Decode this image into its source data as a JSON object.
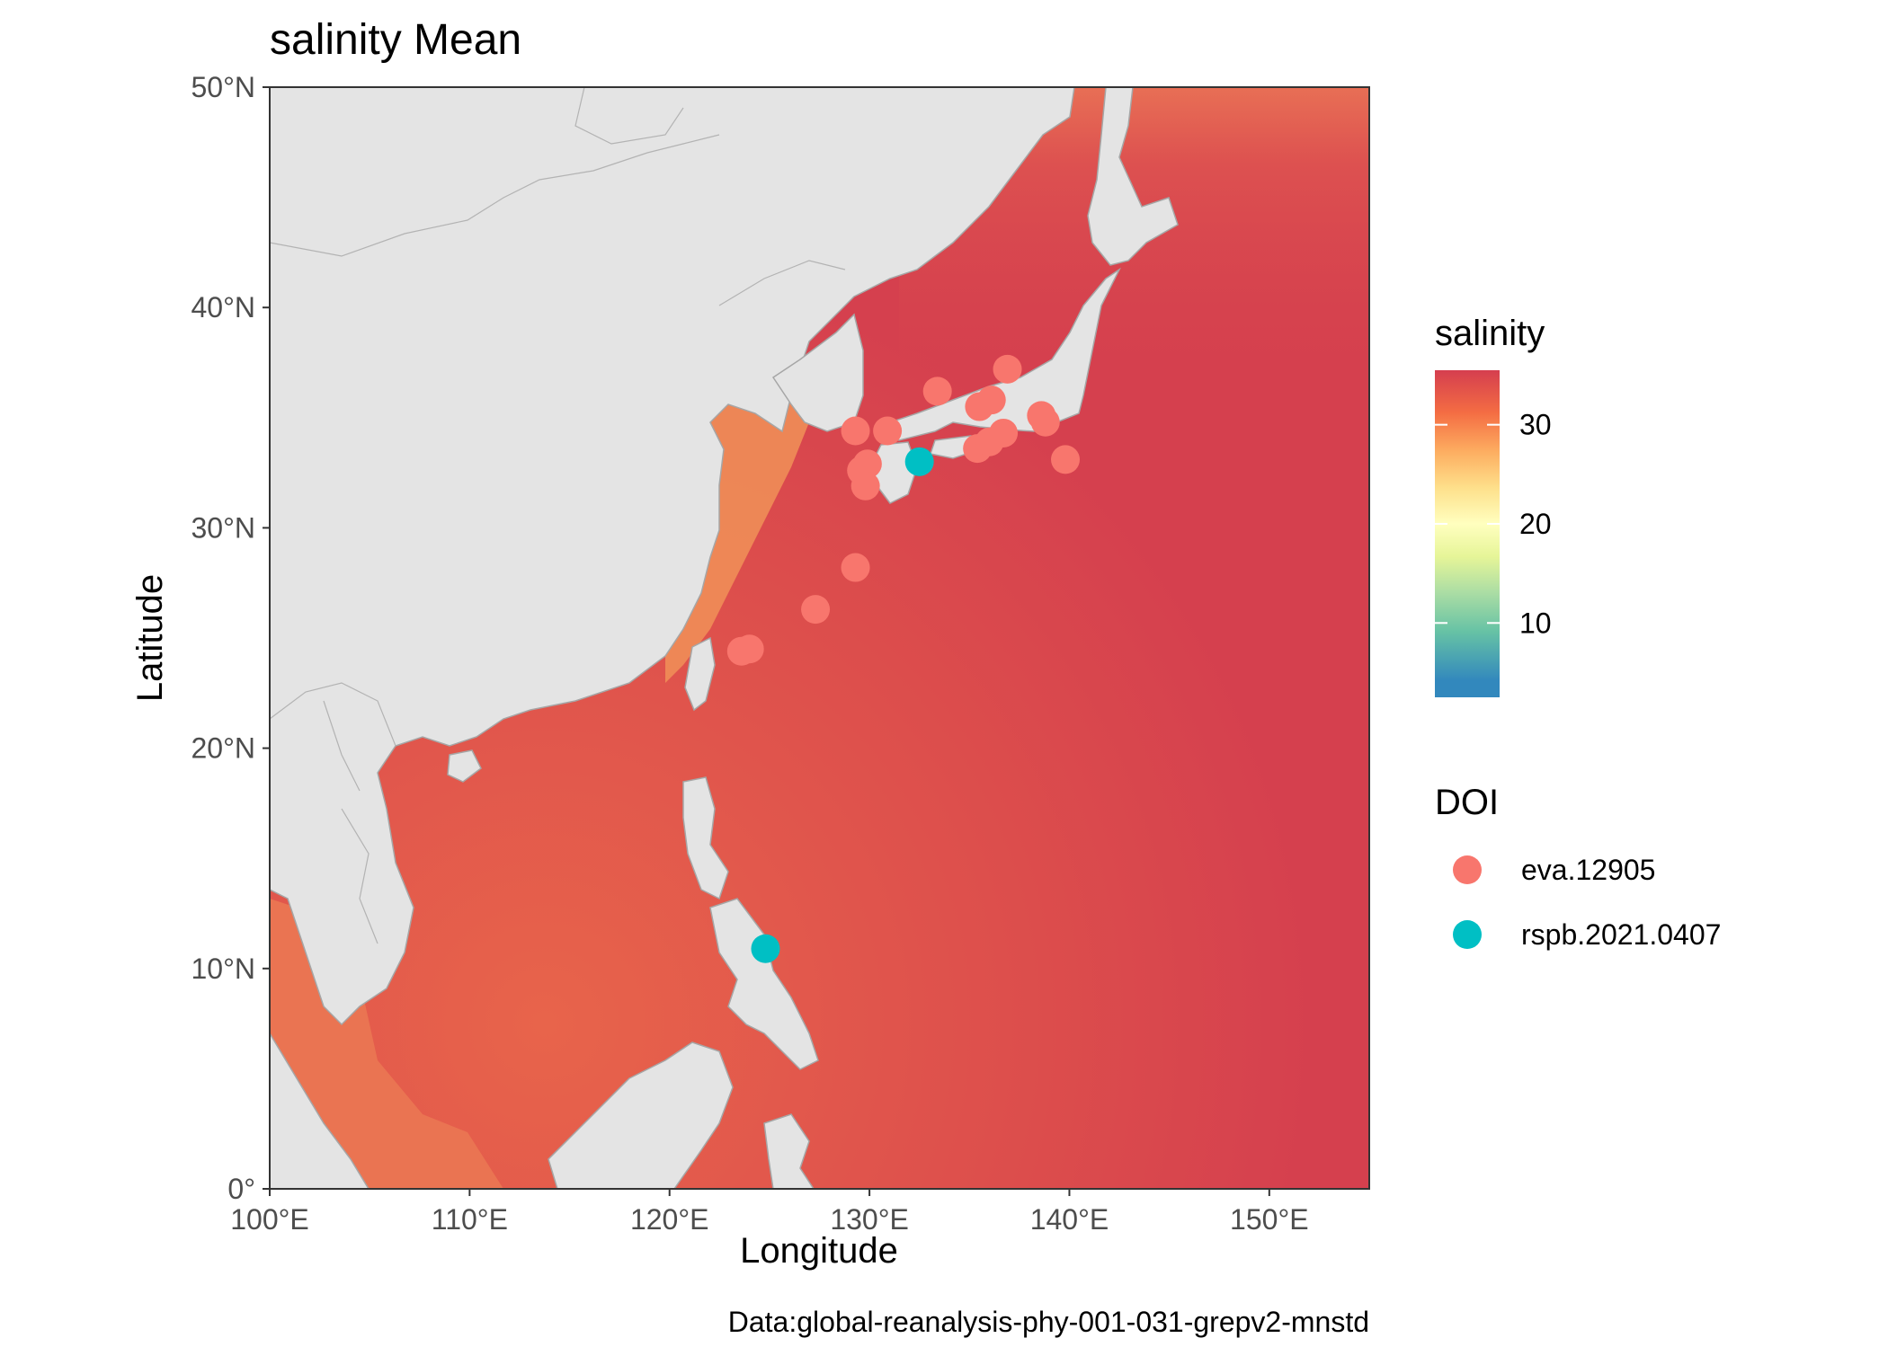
{
  "title": "salinity Mean",
  "xlabel": "Longitude",
  "ylabel": "Latitude",
  "caption": "Data:global-reanalysis-phy-001-031-grepv2-mnstd",
  "x_ticks": [
    "100°E",
    "110°E",
    "120°E",
    "130°E",
    "140°E",
    "150°E"
  ],
  "y_ticks": [
    "0°",
    "10°N",
    "20°N",
    "30°N",
    "40°N",
    "50°N"
  ],
  "colorbar": {
    "title": "salinity",
    "ticks": [
      "10",
      "20",
      "30"
    ],
    "tick_values": [
      10,
      20,
      30
    ],
    "min": 2.5,
    "max": 35.5,
    "palette": [
      "#3288bd",
      "#66c2a5",
      "#abdda4",
      "#e6f598",
      "#ffffbf",
      "#fee08b",
      "#fdae61",
      "#f46d43",
      "#d53e4f"
    ]
  },
  "colors": {
    "land": "#e4e4e4",
    "land_border": "#a6a6a6",
    "panel_border": "#333333",
    "ocean_main": "#d5404e",
    "ocean_shelf": "#e0574a"
  },
  "legend": {
    "title": "DOI",
    "items": [
      {
        "label": "eva.12905",
        "color": "#f8766d"
      },
      {
        "label": "rspb.2021.0407",
        "color": "#00bfc4"
      }
    ]
  },
  "chart_data": {
    "type": "map-scatter",
    "xlim": [
      100,
      155
    ],
    "ylim": [
      0,
      50
    ],
    "series": [
      {
        "name": "eva.12905",
        "points": [
          {
            "lon": 133.4,
            "lat": 36.2
          },
          {
            "lon": 136.9,
            "lat": 37.2
          },
          {
            "lon": 135.5,
            "lat": 35.5
          },
          {
            "lon": 136.1,
            "lat": 35.8
          },
          {
            "lon": 138.6,
            "lat": 35.1
          },
          {
            "lon": 138.8,
            "lat": 34.8
          },
          {
            "lon": 129.3,
            "lat": 34.4
          },
          {
            "lon": 130.9,
            "lat": 34.4
          },
          {
            "lon": 135.4,
            "lat": 33.6
          },
          {
            "lon": 136.0,
            "lat": 33.9
          },
          {
            "lon": 136.7,
            "lat": 34.3
          },
          {
            "lon": 139.8,
            "lat": 33.1
          },
          {
            "lon": 129.9,
            "lat": 32.9
          },
          {
            "lon": 129.6,
            "lat": 32.6
          },
          {
            "lon": 129.8,
            "lat": 31.9
          },
          {
            "lon": 129.3,
            "lat": 28.2
          },
          {
            "lon": 127.3,
            "lat": 26.3
          },
          {
            "lon": 123.6,
            "lat": 24.4
          },
          {
            "lon": 124.0,
            "lat": 24.5
          }
        ]
      },
      {
        "name": "rspb.2021.0407",
        "points": [
          {
            "lon": 132.5,
            "lat": 33.0
          },
          {
            "lon": 124.8,
            "lat": 10.9
          }
        ]
      }
    ]
  }
}
